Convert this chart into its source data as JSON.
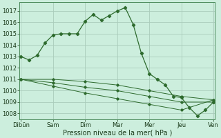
{
  "background_color": "#cceedd",
  "grid_color": "#aaccbb",
  "line_color": "#2d6a2d",
  "x_labels": [
    "Dibūn",
    "Sam",
    "Dim",
    "Mar",
    "Mer",
    "Jeu",
    "Ven"
  ],
  "x_ticks": [
    0,
    4,
    8,
    12,
    16,
    20,
    24
  ],
  "series1_x": [
    0,
    1,
    2,
    3,
    4,
    5,
    6,
    7,
    8,
    9,
    10,
    11,
    12,
    13,
    14,
    15,
    16,
    17,
    18,
    19,
    20,
    21,
    22,
    23,
    24
  ],
  "series1_y": [
    1013.0,
    1012.7,
    1013.1,
    1014.2,
    1014.9,
    1015.0,
    1015.0,
    1015.0,
    1016.1,
    1016.7,
    1016.2,
    1016.6,
    1017.0,
    1017.3,
    1015.8,
    1013.3,
    1011.5,
    1011.0,
    1010.5,
    1009.5,
    1009.4,
    1008.5,
    1007.8,
    1008.3,
    1009.0
  ],
  "series2_x": [
    0,
    4,
    8,
    12,
    16,
    20,
    24
  ],
  "series2_y": [
    1011.0,
    1011.0,
    1010.8,
    1010.5,
    1010.0,
    1009.5,
    1009.2
  ],
  "series3_x": [
    0,
    4,
    8,
    12,
    16,
    20,
    24
  ],
  "series3_y": [
    1011.0,
    1010.7,
    1010.3,
    1010.0,
    1009.5,
    1009.0,
    1009.0
  ],
  "series4_x": [
    0,
    4,
    8,
    12,
    16,
    20,
    24
  ],
  "series4_y": [
    1011.0,
    1010.4,
    1009.8,
    1009.3,
    1008.8,
    1008.3,
    1009.2
  ],
  "ylabel_text": "Pression niveau de la mer( hPa )",
  "ylim": [
    1007.5,
    1017.8
  ],
  "yticks": [
    1008,
    1009,
    1010,
    1011,
    1012,
    1013,
    1014,
    1015,
    1016,
    1017
  ],
  "figsize": [
    3.2,
    2.0
  ],
  "dpi": 100
}
